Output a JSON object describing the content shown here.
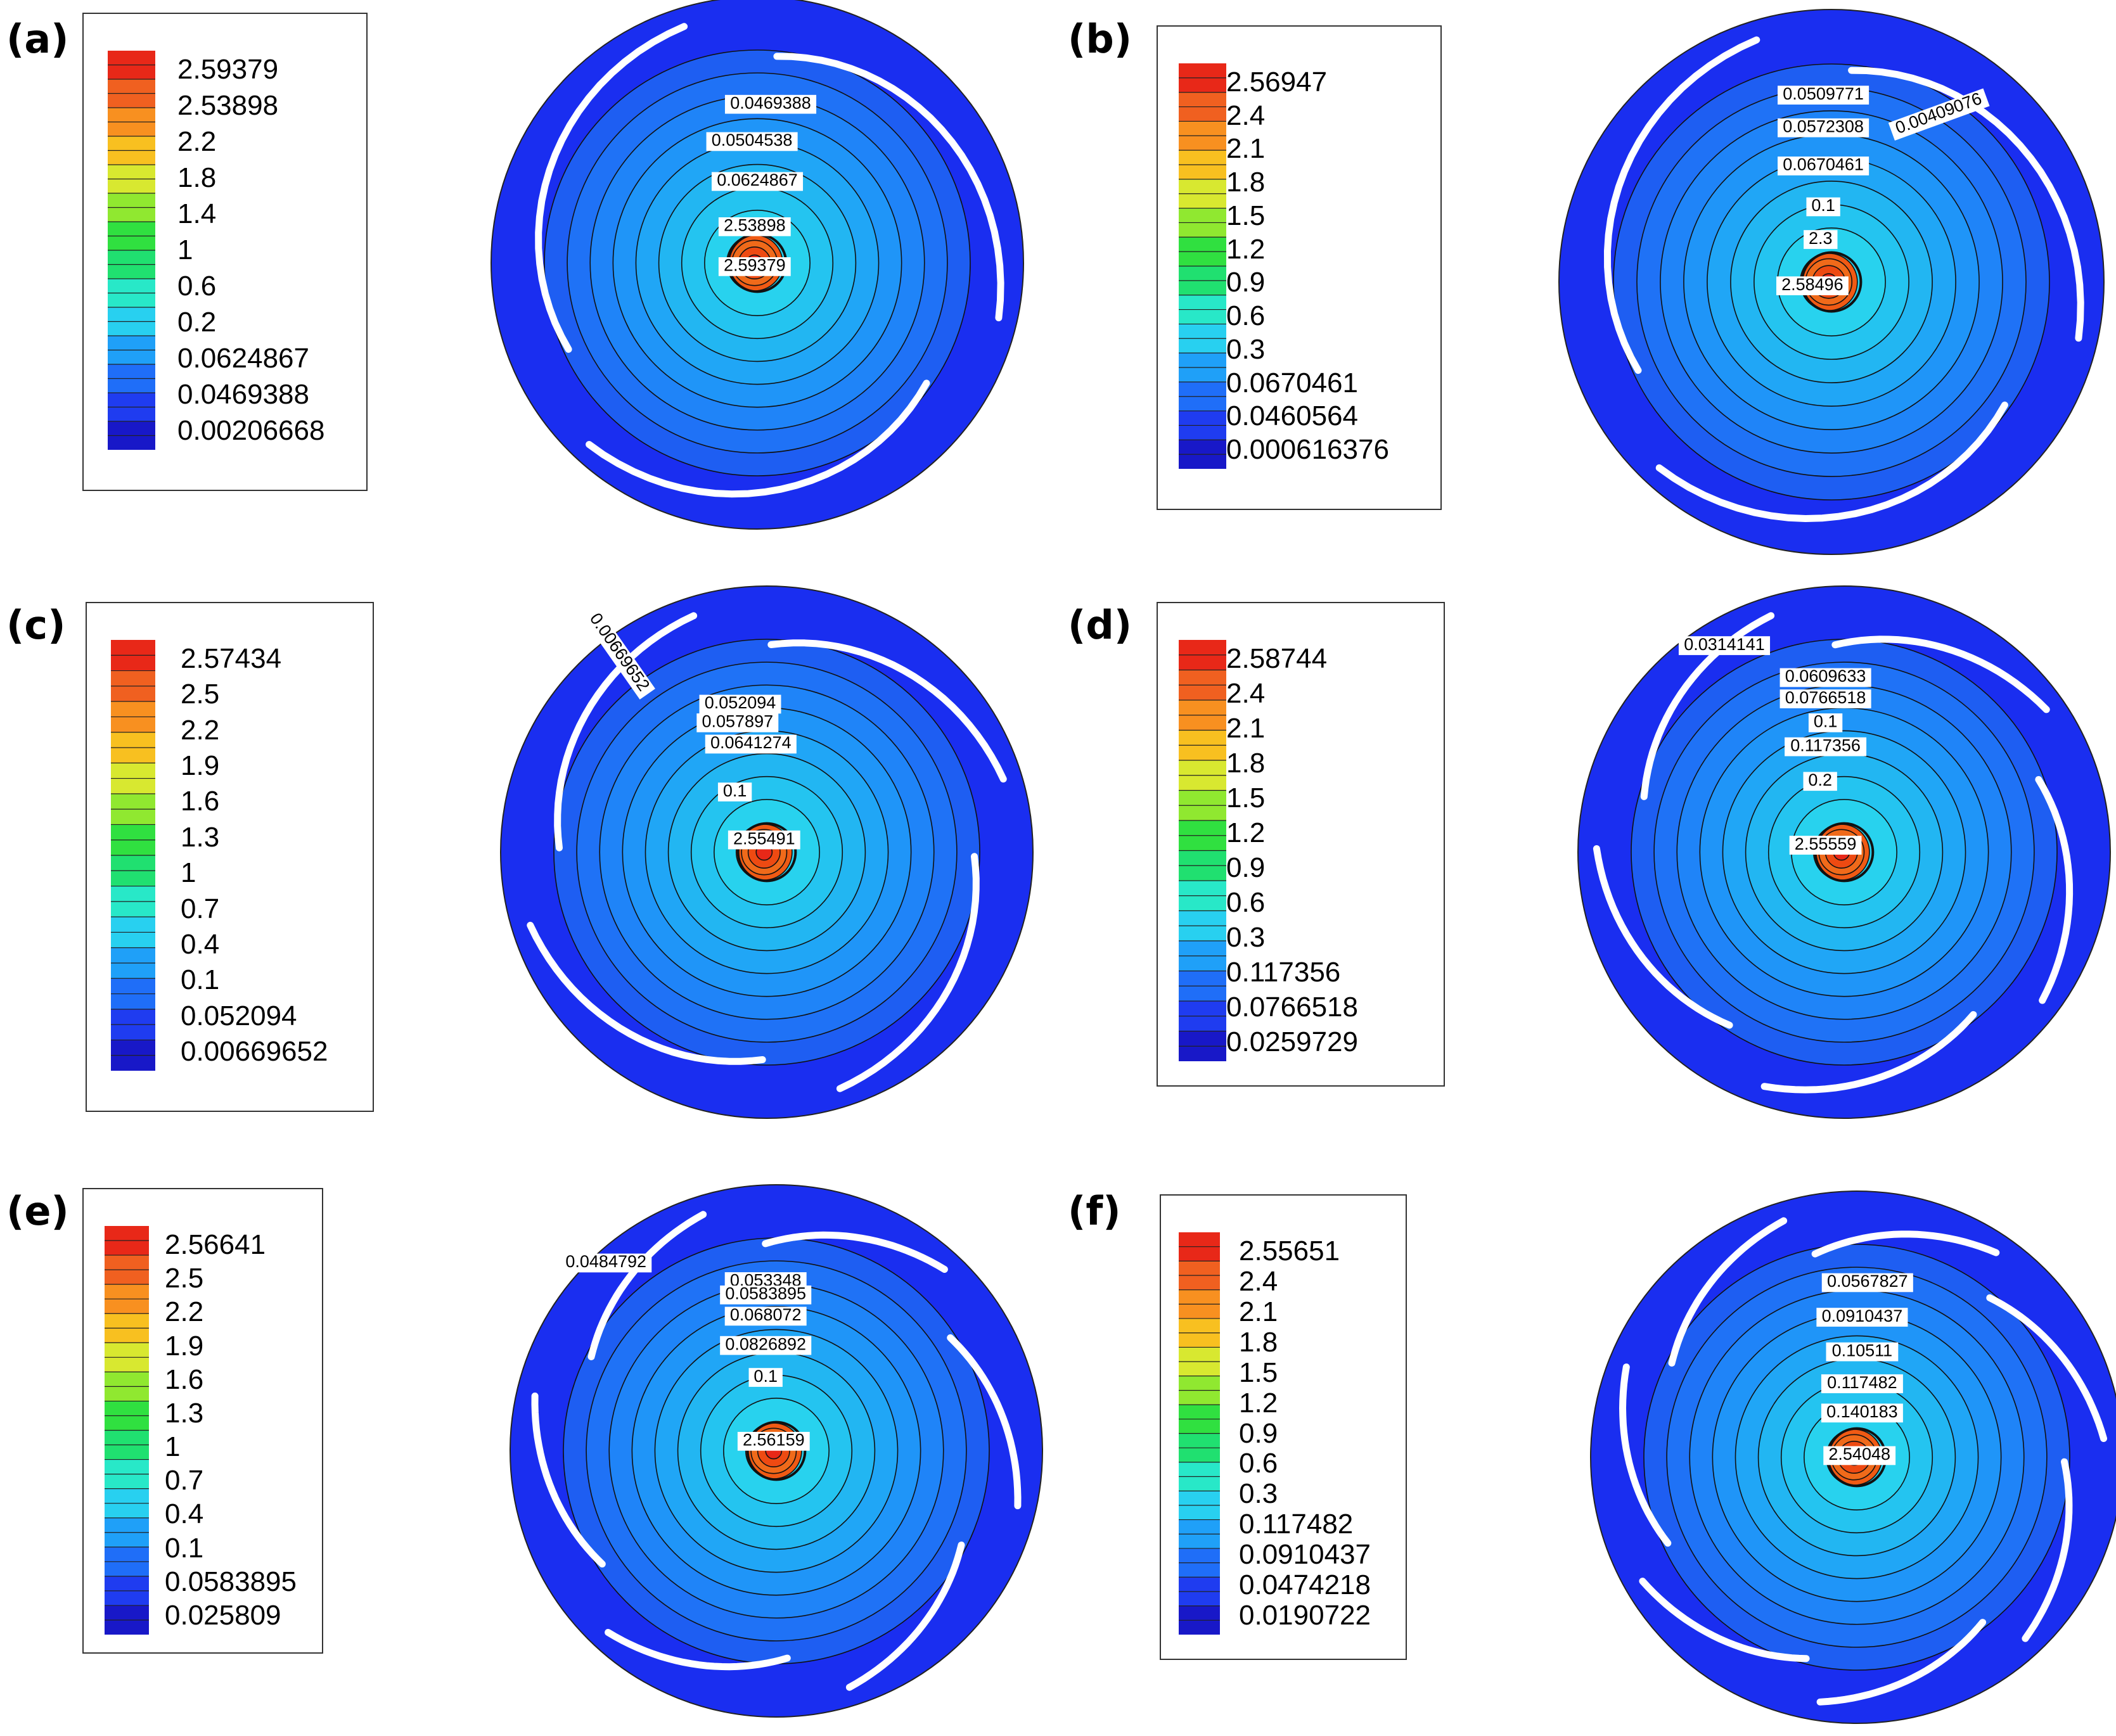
{
  "figure": {
    "colors": {
      "outer_ring": "#1a2ef0",
      "blade": "#ffffff",
      "contour_line": "#111111"
    },
    "color_scale": [
      "#1818c8",
      "#1f3cf0",
      "#1f6ef8",
      "#1fa0f8",
      "#28d0f0",
      "#28e8c8",
      "#20e070",
      "#30e040",
      "#90e830",
      "#d8e830",
      "#f8c020",
      "#f89020",
      "#f06020",
      "#e82818"
    ]
  },
  "chart_data": [
    {
      "type": "contour",
      "panel": "(a)",
      "legend": [
        "2.59379",
        "2.53898",
        "2.2",
        "1.8",
        "1.4",
        "1",
        "0.6",
        "0.2",
        "0.0624867",
        "0.0469388",
        "0.00206668"
      ],
      "contour_labels": [
        "0.0469388",
        "0.0504538",
        "0.0624867",
        "2.53898",
        "2.59379"
      ],
      "blade_count": 3,
      "center_level": 2.59379
    },
    {
      "type": "contour",
      "panel": "(b)",
      "legend": [
        "2.56947",
        "2.4",
        "2.1",
        "1.8",
        "1.5",
        "1.2",
        "0.9",
        "0.6",
        "0.3",
        "0.0670461",
        "0.0460564",
        "0.000616376"
      ],
      "contour_labels": [
        "0.0509771",
        "0.0572308",
        "0.0670461",
        "0.1",
        "2.3",
        "2.58496",
        "0.00409076"
      ],
      "blade_count": 3,
      "center_level": 2.58496
    },
    {
      "type": "contour",
      "panel": "(c)",
      "legend": [
        "2.57434",
        "2.5",
        "2.2",
        "1.9",
        "1.6",
        "1.3",
        "1",
        "0.7",
        "0.4",
        "0.1",
        "0.052094",
        "0.00669652"
      ],
      "contour_labels": [
        "0.00669652",
        "0.052094",
        "0.057897",
        "0.0641274",
        "0.1",
        "2.55491"
      ],
      "blade_count": 4,
      "center_level": 2.55491
    },
    {
      "type": "contour",
      "panel": "(d)",
      "legend": [
        "2.58744",
        "2.4",
        "2.1",
        "1.8",
        "1.5",
        "1.2",
        "0.9",
        "0.6",
        "0.3",
        "0.117356",
        "0.0766518",
        "0.0259729"
      ],
      "contour_labels": [
        "0.0314141",
        "0.0609633",
        "0.0766518",
        "0.1",
        "0.117356",
        "0.2",
        "2.55559"
      ],
      "blade_count": 5,
      "center_level": 2.55559
    },
    {
      "type": "contour",
      "panel": "(e)",
      "legend": [
        "2.56641",
        "2.5",
        "2.2",
        "1.9",
        "1.6",
        "1.3",
        "1",
        "0.7",
        "0.4",
        "0.1",
        "0.0583895",
        "0.025809"
      ],
      "contour_labels": [
        "0.0484792",
        "0.053348",
        "0.0583895",
        "0.068072",
        "0.0826892",
        "0.1",
        "2.56159"
      ],
      "blade_count": 6,
      "center_level": 2.56159
    },
    {
      "type": "contour",
      "panel": "(f)",
      "legend": [
        "2.55651",
        "2.4",
        "2.1",
        "1.8",
        "1.5",
        "1.2",
        "0.9",
        "0.6",
        "0.3",
        "0.117482",
        "0.0910437",
        "0.0474218",
        "0.0190722"
      ],
      "contour_labels": [
        "0.0567827",
        "0.0910437",
        "0.10511",
        "0.117482",
        "0.140183",
        "2.54048"
      ],
      "blade_count": 7,
      "center_level": 2.54048
    }
  ]
}
